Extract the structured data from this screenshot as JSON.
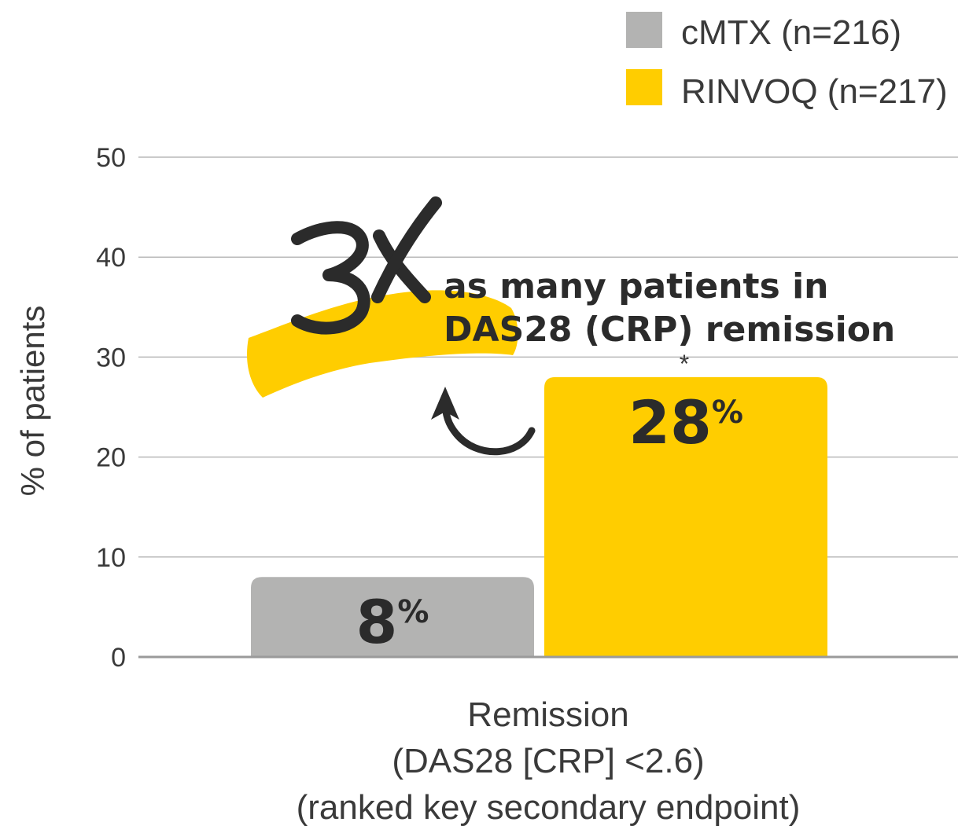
{
  "chart_data": {
    "type": "bar",
    "title": "",
    "ylabel": "% of patients",
    "xlabel_lines": [
      "Remission",
      "(DAS28 [CRP] <2.6)",
      "(ranked key secondary endpoint)"
    ],
    "ylim": [
      0,
      50
    ],
    "yticks": [
      0,
      10,
      20,
      30,
      40,
      50
    ],
    "grid": true,
    "legend_position": "top-right",
    "category": "Remission (DAS28 [CRP] <2.6)",
    "series": [
      {
        "name": "cMTX (n=216)",
        "value": 8,
        "label": "8",
        "unit": "%",
        "color": "#b3b3b2",
        "note": ""
      },
      {
        "name": "RINVOQ (n=217)",
        "value": 28,
        "label": "28",
        "unit": "%",
        "color": "#ffcd00",
        "note": "*"
      }
    ],
    "annotation": {
      "headline": "3X",
      "line1": "as many patients in",
      "line2": "DAS28 (CRP) remission",
      "accent_color": "#ffcd00",
      "text_color": "#2b2b2b"
    }
  }
}
